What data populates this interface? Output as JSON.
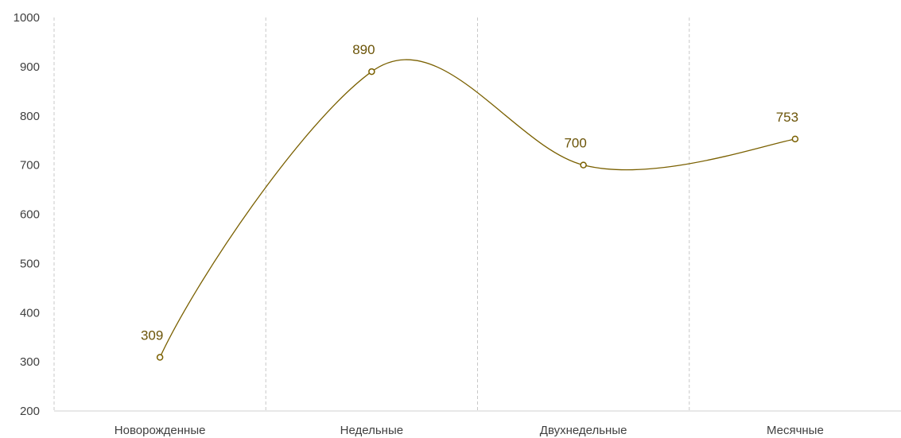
{
  "chart_data": {
    "type": "line",
    "categories": [
      "Новорожденные",
      "Недельные",
      "Двухнедельные",
      "Месячные"
    ],
    "series": [
      {
        "values": [
          309,
          890,
          700,
          753
        ]
      }
    ],
    "data_labels": [
      "309",
      "890",
      "700",
      "753"
    ],
    "yticks": [
      "200",
      "300",
      "400",
      "500",
      "600",
      "700",
      "800",
      "900",
      "1000"
    ],
    "ylim": [
      200,
      1000
    ],
    "smooth": true,
    "markers": "hollow-circle",
    "grid": "vertical-dashed-separators",
    "legend": "none",
    "colors": {
      "line": "#7a6000",
      "marker_fill": "#ffffff",
      "label": "#6b5408",
      "grid": "#c8c8c8",
      "axis": "#d0d0d0",
      "text": "#404040"
    }
  }
}
